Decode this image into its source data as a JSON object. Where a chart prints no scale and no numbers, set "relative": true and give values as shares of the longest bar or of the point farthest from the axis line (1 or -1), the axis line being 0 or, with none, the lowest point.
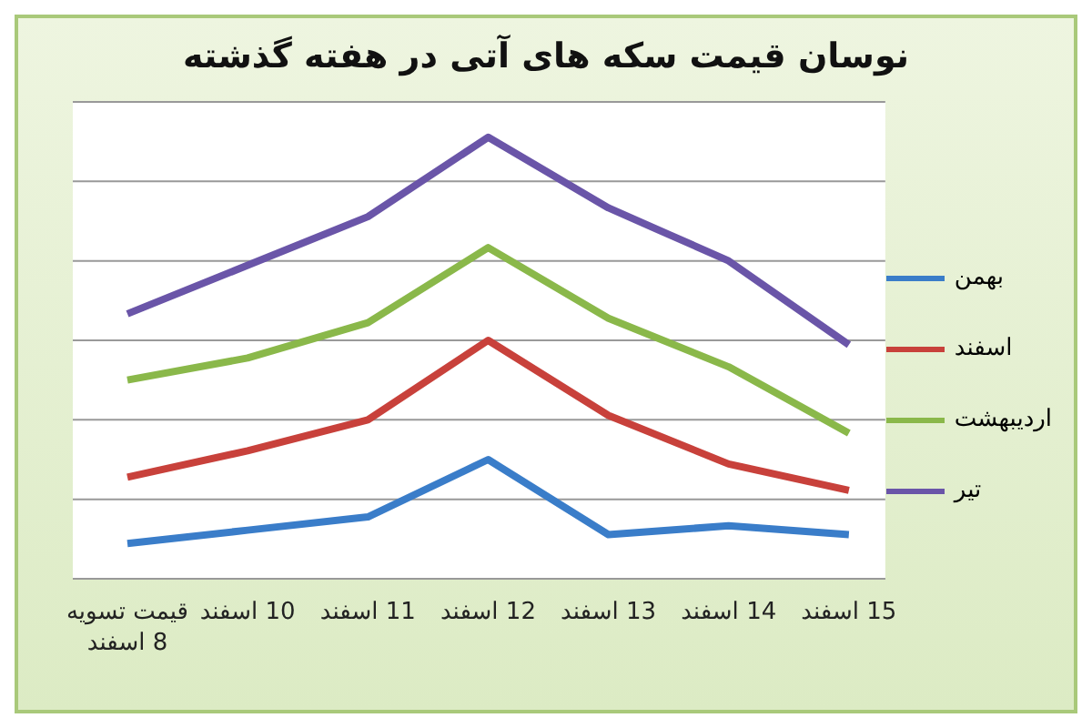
{
  "chart_data": {
    "type": "line",
    "title": "نوسان قیمت سکه های آتی در هفته گذشته",
    "categories": [
      "قیمت تسویه 8 اسفند",
      "10 اسفند",
      "11 اسفند",
      "12 اسفند",
      "13 اسفند",
      "14 اسفند",
      "15 اسفند"
    ],
    "relative": true,
    "grid": "y",
    "legend": "right",
    "marker": "none",
    "line_style": "solid",
    "series": [
      {
        "name": "بهمن",
        "color": "#3a7dc9",
        "values": [
          0.08,
          0.11,
          0.14,
          0.27,
          0.1,
          0.12,
          0.1
        ]
      },
      {
        "name": "اسفند",
        "color": "#c8413b",
        "values": [
          0.23,
          0.29,
          0.36,
          0.54,
          0.37,
          0.26,
          0.2
        ]
      },
      {
        "name": "اردیبهشت",
        "color": "#8ab84a",
        "values": [
          0.45,
          0.5,
          0.58,
          0.75,
          0.59,
          0.48,
          0.33
        ]
      },
      {
        "name": "تیر",
        "color": "#6a55a8",
        "values": [
          0.6,
          0.71,
          0.82,
          1,
          0.84,
          0.72,
          0.53
        ]
      }
    ]
  }
}
